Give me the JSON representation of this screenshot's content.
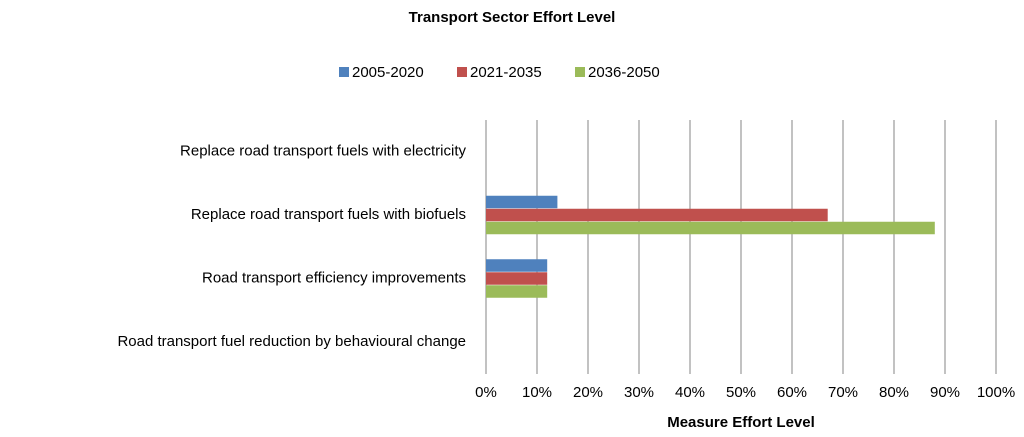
{
  "chart_data": {
    "type": "barh",
    "title": "Transport Sector Effort Level",
    "xlabel": "Measure Effort Level",
    "categories": [
      "Replace road transport fuels with electricity",
      "Replace road transport fuels with biofuels",
      "Road transport efficiency improvements",
      "Road transport fuel reduction by behavioural change"
    ],
    "series": [
      {
        "name": "2005-2020",
        "color": "#4f81bd",
        "values": [
          0,
          14,
          12,
          0
        ]
      },
      {
        "name": "2021-2035",
        "color": "#c0504d",
        "values": [
          0,
          67,
          12,
          0
        ]
      },
      {
        "name": "2036-2050",
        "color": "#9bbb59",
        "values": [
          0,
          88,
          12,
          0
        ]
      }
    ],
    "xlim": [
      0,
      100
    ],
    "xticks": [
      {
        "value": 0,
        "label": "0%"
      },
      {
        "value": 10,
        "label": "10%"
      },
      {
        "value": 20,
        "label": "20%"
      },
      {
        "value": 30,
        "label": "30%"
      },
      {
        "value": 40,
        "label": "40%"
      },
      {
        "value": 50,
        "label": "50%"
      },
      {
        "value": 60,
        "label": "60%"
      },
      {
        "value": 70,
        "label": "70%"
      },
      {
        "value": 80,
        "label": "80%"
      },
      {
        "value": 90,
        "label": "90%"
      },
      {
        "value": 100,
        "label": "100%"
      }
    ],
    "grid": true,
    "legend": "top"
  }
}
